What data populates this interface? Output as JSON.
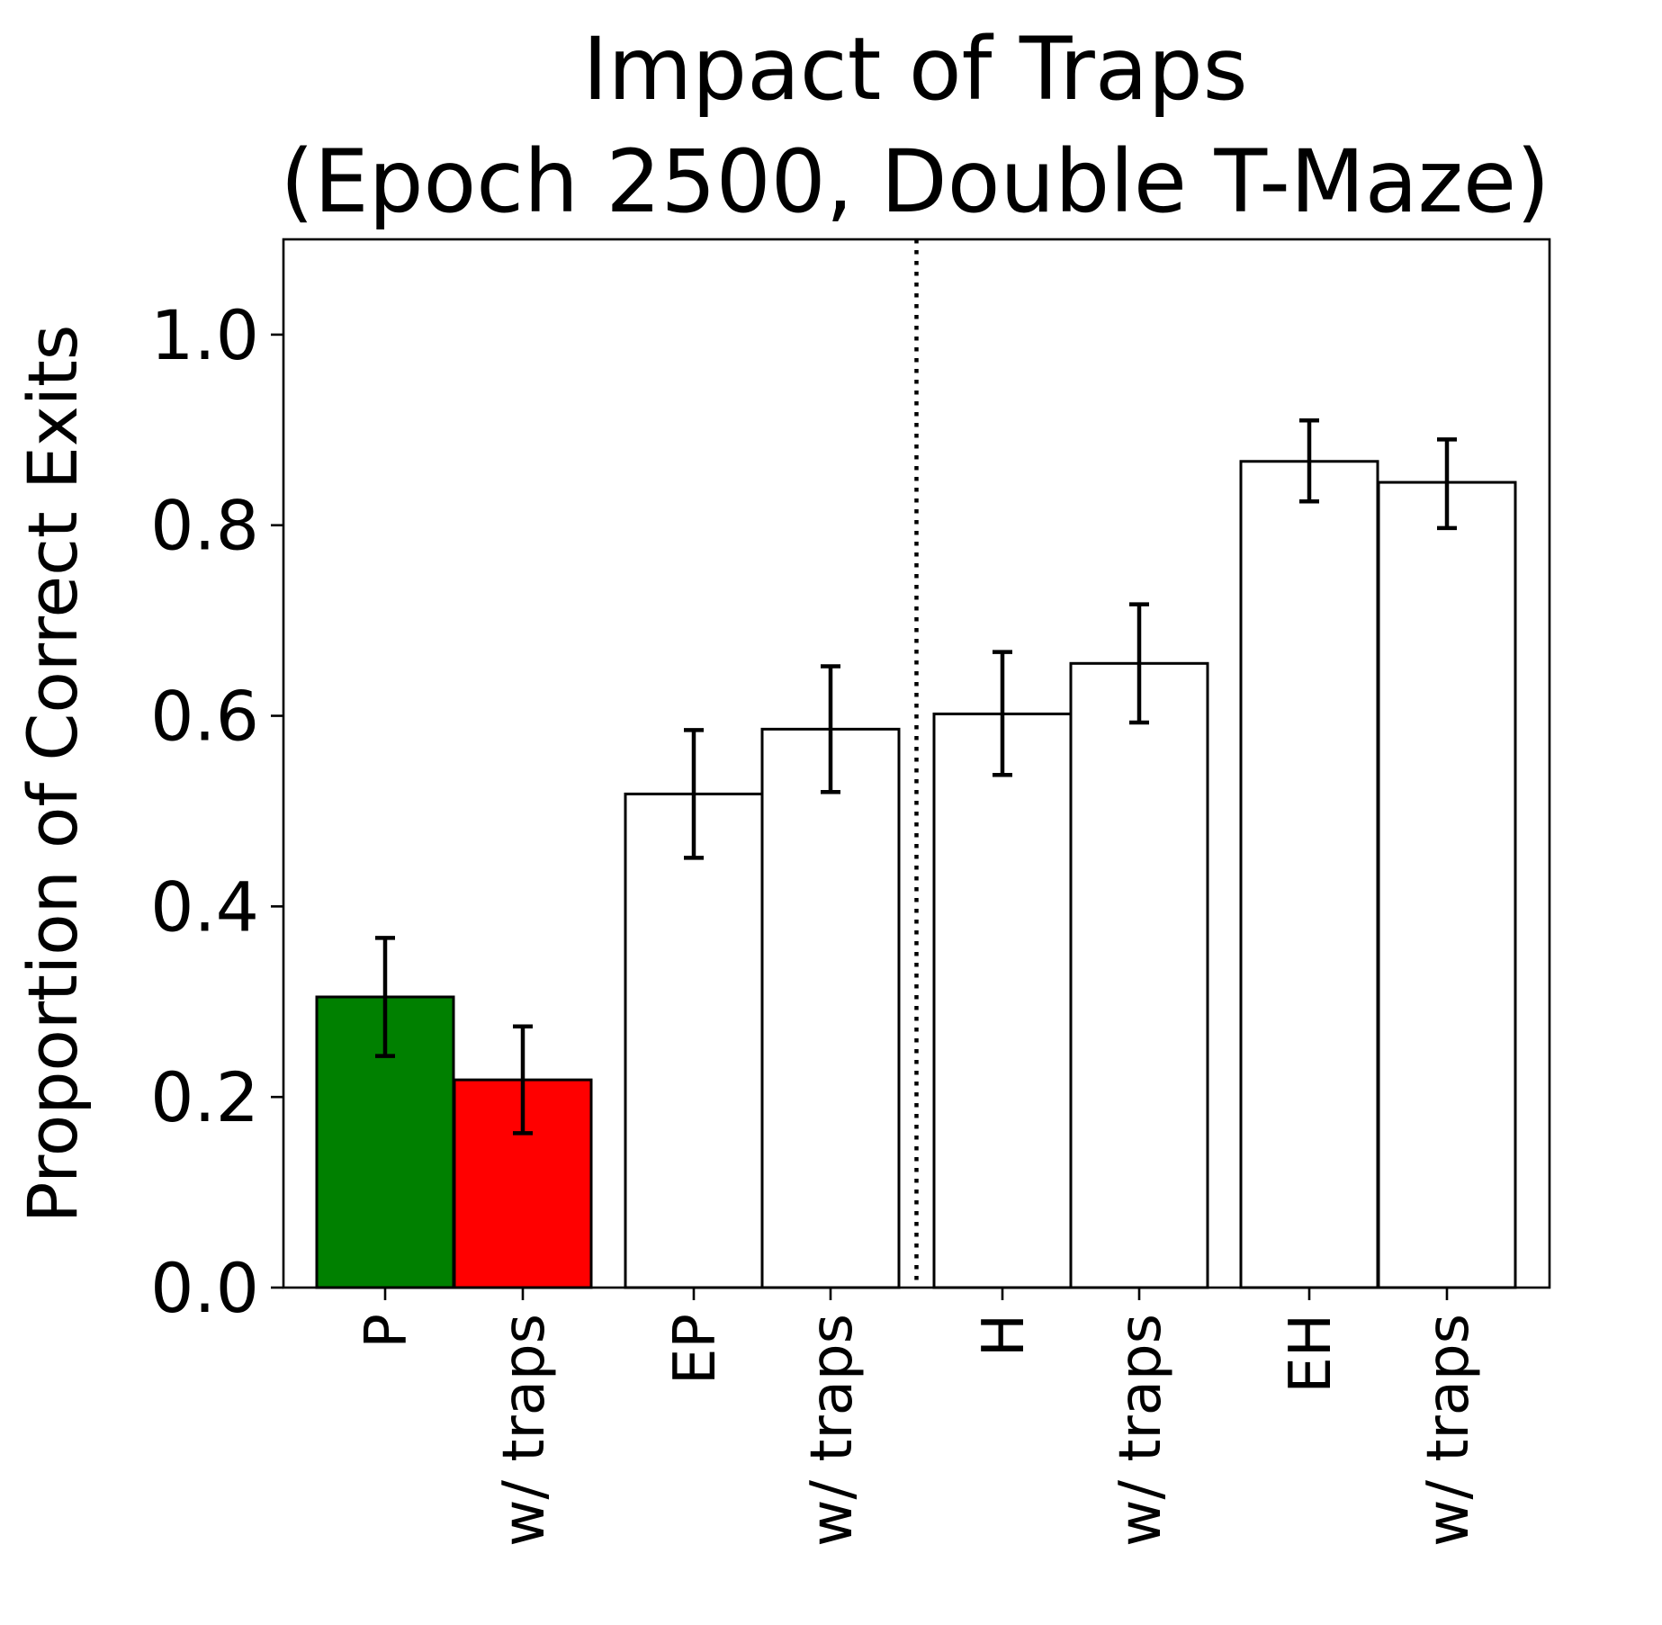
{
  "chart_data": {
    "type": "bar",
    "title_lines": [
      "Impact of Traps",
      "(Epoch 2500, Double T-Maze)"
    ],
    "xlabel": "",
    "ylabel": "Proportion of Correct Exits",
    "ylim": [
      0,
      1.1
    ],
    "yticks": [
      0.0,
      0.2,
      0.4,
      0.6,
      0.8,
      1.0
    ],
    "ytick_labels": [
      "0.0",
      "0.2",
      "0.4",
      "0.6",
      "0.8",
      "1.0"
    ],
    "categories": [
      "P",
      "w/ traps",
      "EP",
      "w/ traps",
      "H",
      "w/ traps",
      "EH",
      "w/ traps"
    ],
    "values": [
      0.305,
      0.218,
      0.518,
      0.586,
      0.602,
      0.655,
      0.867,
      0.845
    ],
    "error_low": [
      0.243,
      0.162,
      0.451,
      0.52,
      0.538,
      0.593,
      0.825,
      0.797
    ],
    "error_high": [
      0.367,
      0.274,
      0.585,
      0.652,
      0.667,
      0.717,
      0.91,
      0.89
    ],
    "bar_colors": [
      "#008000",
      "#ff0000",
      "#ffffff",
      "#ffffff",
      "#ffffff",
      "#ffffff",
      "#ffffff",
      "#ffffff"
    ],
    "edge_color": "#000000",
    "separator": "dotted vertical line between the EP and H groups",
    "grid": false,
    "legend": "none"
  }
}
